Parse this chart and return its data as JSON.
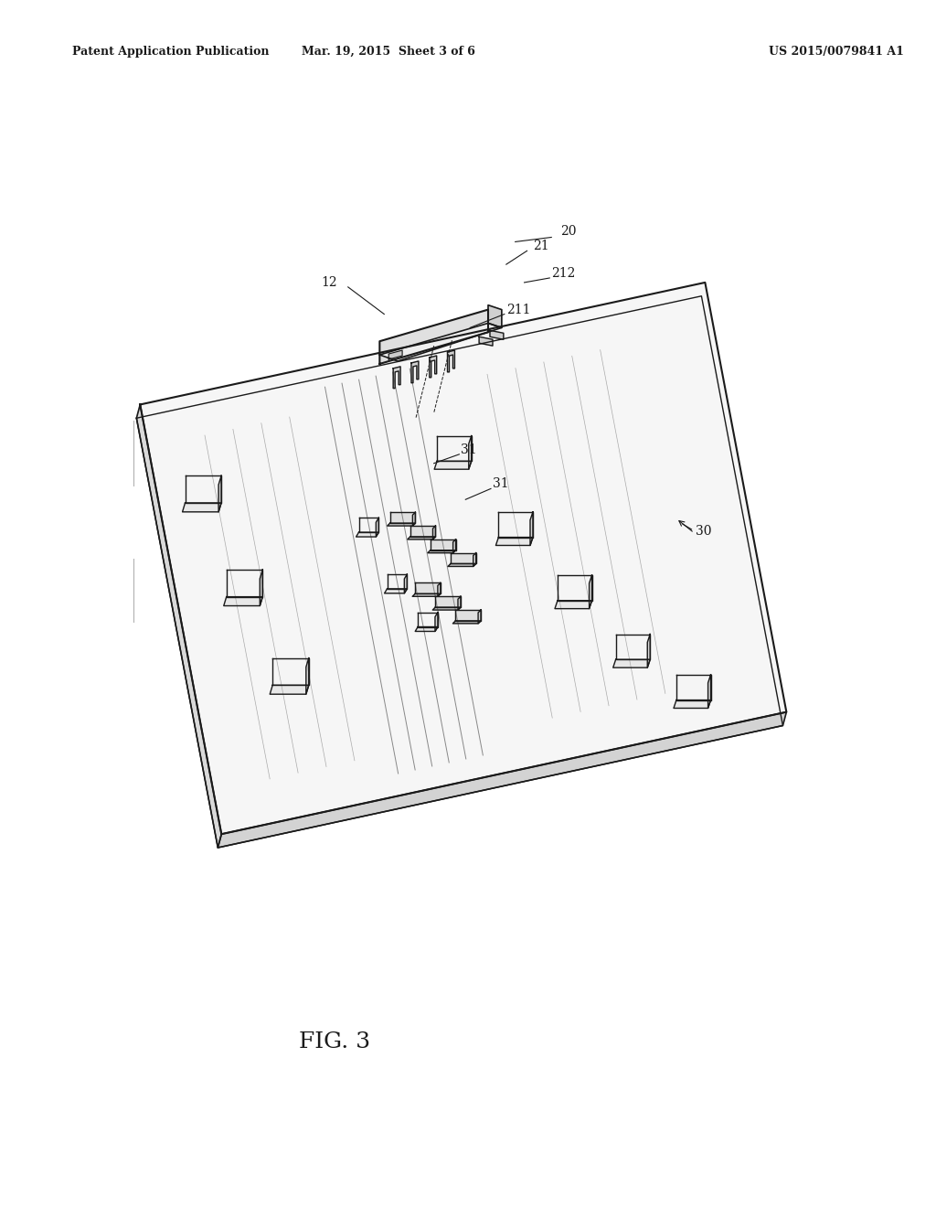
{
  "bg_color": "#ffffff",
  "line_color": "#1a1a1a",
  "header_left": "Patent Application Publication",
  "header_mid": "Mar. 19, 2015  Sheet 3 of 6",
  "header_right": "US 2015/0079841 A1",
  "fig_label": "FIG. 3",
  "label_20": "20",
  "label_21": "21",
  "label_212": "212",
  "label_211": "211",
  "label_12": "12",
  "label_31a": "31",
  "label_31b": "31",
  "label_30": "30"
}
